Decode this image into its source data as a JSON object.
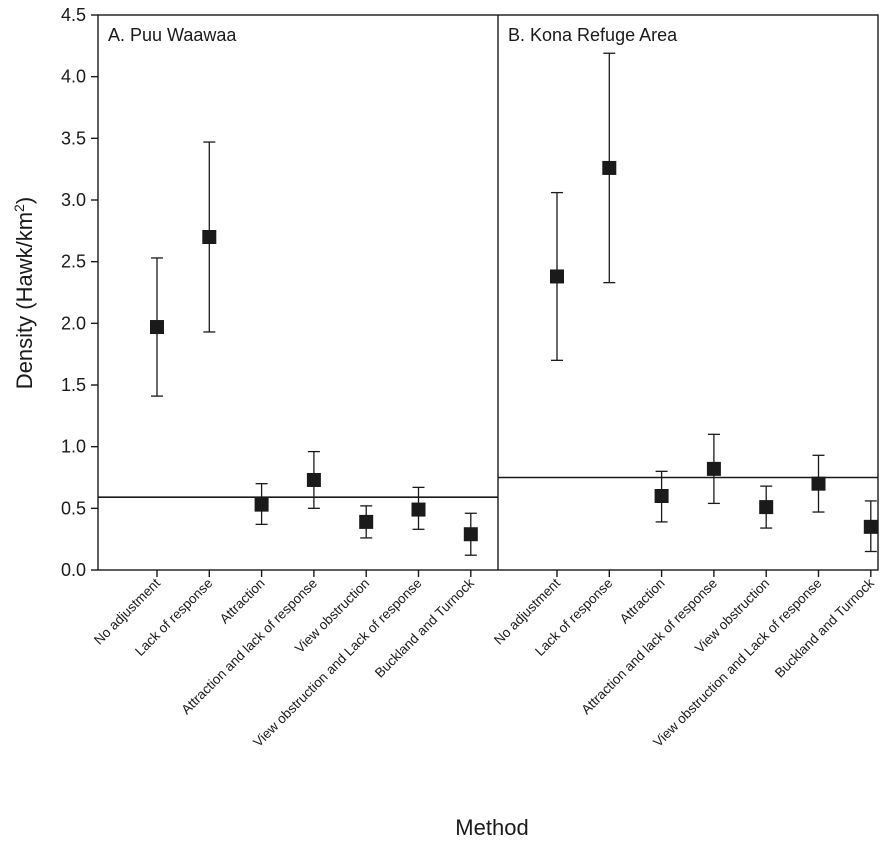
{
  "chart_data": {
    "type": "scatter",
    "xlabel": "Method",
    "ylabel": "Density (Hawk/km",
    "ylabel_sup": "2",
    "ylabel_close": ")",
    "ylim": [
      0,
      4.5
    ],
    "yticks": [
      "0.0",
      "0.5",
      "1.0",
      "1.5",
      "2.0",
      "2.5",
      "3.0",
      "3.5",
      "4.0",
      "4.5"
    ],
    "grid": false,
    "panels": [
      {
        "label": "A. Puu Waawaa",
        "reference_line": 0.59,
        "categories": [
          "No adjustment",
          "Lack of response",
          "Attraction",
          "Attraction and lack of response",
          "View obstruction",
          "View obstruction and Lack of response",
          "Buckland and Turnock"
        ],
        "values": [
          1.97,
          2.7,
          0.53,
          0.73,
          0.39,
          0.49,
          0.29
        ],
        "lower": [
          1.41,
          1.93,
          0.37,
          0.5,
          0.26,
          0.33,
          0.12
        ],
        "upper": [
          2.53,
          3.47,
          0.7,
          0.96,
          0.52,
          0.67,
          0.46
        ]
      },
      {
        "label": "B. Kona Refuge Area",
        "reference_line": 0.75,
        "categories": [
          "No adjustment",
          "Lack of response",
          "Attraction",
          "Attraction and lack of response",
          "View obstruction",
          "View obstruction and Lack of response",
          "Buckland and Turnock"
        ],
        "values": [
          2.38,
          3.26,
          0.6,
          0.82,
          0.51,
          0.7,
          0.35
        ],
        "lower": [
          1.7,
          2.33,
          0.39,
          0.54,
          0.34,
          0.47,
          0.15
        ],
        "upper": [
          3.06,
          4.19,
          0.8,
          1.1,
          0.68,
          0.93,
          0.56
        ]
      }
    ]
  }
}
